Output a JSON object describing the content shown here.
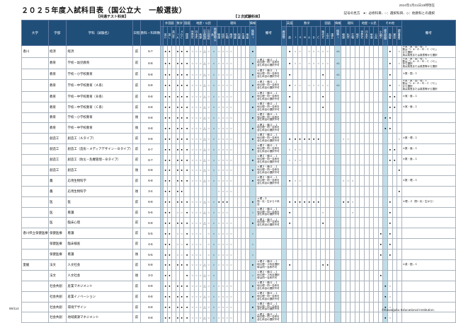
{
  "page": {
    "title": "２０２５年度入試科目表（国公立大　一般選抜）",
    "as_of": "2024年1月31日19時現在",
    "legend": "記号の見方　●：必修科目、○：選択科目、◇：他教科との選択",
    "section_ct": "【共通テスト科目】",
    "section_nj": "【２次試験科目】",
    "page_no": "86/114",
    "copyright": "©Kawaijuku Educational Institution."
  },
  "colors": {
    "header_bg": "#1F4E79",
    "stripe": "#BFDDE9",
    "grid": "#AAB4BD"
  },
  "table": {
    "left_cols": [
      "大学",
      "学部",
      "学科（試験名）",
      "日程",
      "教科・科目数"
    ],
    "ct": {
      "groups": [
        {
          "label": "",
          "span": 1
        },
        {
          "label": "外国語",
          "span": 3
        },
        {
          "label": "数学",
          "span": 2
        },
        {
          "label": "国語",
          "span": 1
        },
        {
          "label": "地歴・公民",
          "span": 6
        },
        {
          "label": "理科",
          "span": 8
        },
        {
          "label": "情報",
          "span": 1
        }
      ],
      "cols": [
        "",
        "英Ｒ",
        "英Ｌ",
        "英以外",
        "ⅠＡ",
        "ⅡＢＣ",
        "国語",
        "世界史",
        "日本史",
        "地理",
        "公共倫理",
        "公共政経",
        "地総歴総公共",
        "物理",
        "化学",
        "生物",
        "地学",
        "物基",
        "化基",
        "生基",
        "地基",
        "情報Ⅰ"
      ],
      "hl": [
        0,
        12,
        21
      ],
      "note_label": "備考"
    },
    "nj": {
      "groups": [
        {
          "label": "",
          "span": 1
        },
        {
          "label": "英語",
          "span": 1
        },
        {
          "label": "数学",
          "span": 6
        },
        {
          "label": "国語",
          "span": 3
        },
        {
          "label": "情報",
          "span": 1
        },
        {
          "label": "理科",
          "span": 4
        },
        {
          "label": "地歴・公民",
          "span": 4
        },
        {
          "label": "その他",
          "span": 5
        }
      ],
      "cols": [
        "教科数",
        "英",
        "Ⅰ",
        "Ⅱ",
        "Ⅲ",
        "Ａ",
        "Ｂ",
        "Ｃ",
        "現代文",
        "古文",
        "漢文",
        "情報Ⅰ",
        "物理",
        "化学",
        "生物",
        "地学",
        "世界史",
        "日本史",
        "地理",
        "公民",
        "小論文",
        "総合問題",
        "面接",
        "実技",
        "調査書等"
      ],
      "hl": [
        0,
        11,
        21
      ],
      "note_label": "備考"
    }
  },
  "ct_patterns": {
    "HUM": [
      "",
      "●",
      "●",
      "",
      "●",
      "●",
      "●",
      "○",
      "○",
      "○",
      "△",
      "○",
      "○",
      "○",
      "○",
      "○",
      "○",
      "",
      "",
      "",
      "",
      "●"
    ],
    "MED": [
      "",
      "●",
      "●",
      "",
      "●",
      "●",
      "●",
      "○",
      "○",
      "○",
      "△",
      "○",
      "○",
      "●",
      "●",
      "●",
      "",
      "",
      "",
      "",
      "",
      "●"
    ],
    "NUR": [
      "",
      "●",
      "●",
      "",
      "○",
      "○",
      "●",
      "○",
      "○",
      "○",
      "△",
      "○",
      "○",
      "○",
      "○",
      "○",
      "",
      "",
      "",
      "",
      "",
      "○"
    ],
    "HSU": [
      "",
      "●",
      "●",
      "",
      "○",
      "○",
      "●",
      "○",
      "○",
      "○",
      "",
      "○",
      "○",
      "○",
      "○",
      "○",
      "○",
      "",
      "",
      "",
      "",
      "○"
    ],
    "LBL": [
      "",
      "●",
      "●",
      "",
      "",
      "",
      "●",
      "○",
      "○",
      "○",
      "△",
      "○",
      "○",
      "",
      "",
      "",
      "",
      "",
      "",
      "",
      "",
      "○"
    ],
    "SCI34": [
      "",
      "●",
      "●",
      "",
      "●",
      "●",
      "",
      "",
      "",
      "",
      "",
      "",
      "",
      "○",
      "○",
      "○",
      "○",
      "",
      "",
      "",
      "",
      ""
    ]
  },
  "nj_patterns": {
    "ECO": [
      "",
      "●",
      "○",
      "○",
      "",
      "○",
      "○",
      "○",
      "○",
      "○",
      "",
      "＊1",
      "",
      "",
      "",
      "",
      "",
      "",
      "",
      "",
      "",
      "",
      "●",
      "",
      "○"
    ],
    "EDU3": [
      "",
      "●",
      "",
      "",
      "",
      "",
      "",
      "",
      "●",
      "",
      "",
      "＊1",
      "",
      "",
      "",
      "",
      "",
      "",
      "",
      "",
      "",
      "",
      "●",
      "",
      ""
    ],
    "EDUP": [
      "",
      "●",
      "",
      "",
      "",
      "",
      "",
      "",
      "●",
      "",
      "",
      "",
      "",
      "",
      "",
      "",
      "",
      "",
      "",
      "",
      "",
      "",
      "●",
      "●",
      ""
    ],
    "EDUL": [
      "",
      "",
      "",
      "",
      "",
      "",
      "",
      "",
      "",
      "",
      "",
      "",
      "",
      "",
      "",
      "",
      "",
      "",
      "",
      "",
      "",
      "●",
      "●",
      "",
      ""
    ],
    "ENGA": [
      "",
      "●",
      "●",
      "●",
      "●",
      "●",
      "●",
      "●",
      "",
      "",
      "",
      "",
      "○",
      "○",
      "",
      "",
      "",
      "",
      "",
      "",
      "",
      "",
      "",
      "",
      "○"
    ],
    "ENGB": [
      "",
      "○",
      "○",
      "○",
      "",
      "",
      "",
      "",
      "",
      "",
      "",
      "",
      "",
      "",
      "",
      "",
      "",
      "",
      "",
      "",
      "",
      "",
      "●",
      "●",
      ""
    ],
    "CHO": [
      "",
      "",
      "",
      "",
      "",
      "",
      "",
      "",
      "",
      "",
      "",
      "",
      "",
      "",
      "",
      "",
      "",
      "",
      "",
      "",
      "",
      "",
      "",
      "",
      "●"
    ],
    "AGR": [
      "",
      "●",
      "○",
      "○",
      "",
      "",
      "",
      "",
      "",
      "",
      "",
      "",
      "○",
      "○",
      "○",
      "",
      "",
      "",
      "",
      "",
      "",
      "",
      "",
      "",
      ""
    ],
    "MED": [
      "",
      "●",
      "●",
      "●",
      "●",
      "●",
      "●",
      "●",
      "",
      "",
      "",
      "",
      "●",
      "●",
      "○",
      "",
      "",
      "",
      "",
      "",
      "",
      "",
      "●",
      "",
      ""
    ],
    "NUR": [
      "",
      "●",
      "",
      "",
      "",
      "",
      "",
      "",
      "○",
      "",
      "",
      "",
      "",
      "",
      "○",
      "",
      "",
      "",
      "",
      "",
      "",
      "",
      "●",
      "",
      ""
    ],
    "PSY": [
      "",
      "●",
      "",
      "",
      "",
      "",
      "",
      "",
      "●",
      "",
      "",
      "",
      "",
      "",
      "",
      "",
      "",
      "",
      "",
      "",
      "",
      "",
      "●",
      "",
      ""
    ],
    "HSN": [
      "",
      "",
      "",
      "",
      "",
      "",
      "",
      "",
      "",
      "",
      "",
      "",
      "",
      "",
      "",
      "",
      "",
      "",
      "",
      "",
      "●",
      "",
      "●",
      "",
      ""
    ],
    "HUMF": [
      "",
      "●",
      "",
      "",
      "",
      "",
      "",
      "",
      "●",
      "●",
      "",
      "",
      "",
      "",
      "",
      "",
      "",
      "",
      "",
      "",
      "",
      "",
      "",
      "",
      ""
    ],
    "CHO2": [
      "",
      "",
      "",
      "",
      "",
      "",
      "",
      "",
      "",
      "",
      "",
      "",
      "",
      "",
      "",
      "",
      "",
      "",
      "",
      "",
      "●",
      "",
      "",
      "",
      ""
    ],
    "SOC": [
      "",
      "",
      "",
      "",
      "",
      "",
      "",
      "",
      "",
      "",
      "",
      "",
      "",
      "",
      "",
      "",
      "",
      "",
      "",
      "",
      "",
      "●",
      "○",
      "",
      ""
    ]
  },
  "ct_notes": {
    "STD": "＊理２・情Ⅰ２→１\n地公理－同一名称を含む科目の選択不可",
    "STD2": "＊理２・情Ⅰ２→１\n地公理－２科目選択時は同一名称不可",
    "MEDN": "＊理→２\n物・化・生から２科目"
  },
  "nj_notes": {
    "BIG": "＊英・数・国・理→１\n数は「Ⅰ・Ⅱ・Ａ・Ｂ・Ｃ（ベ）」\nから選択\n英は英長または英表等から選択",
    "S1": "＊数・国→１",
    "S2": "＊実・面→１",
    "S3": "＊数・理→１",
    "S4": "＊数・面→１",
    "S5": "＊理→２（物・化・生から）",
    "S7": "＊英・国→１"
  },
  "rows": [
    {
      "u": "香川",
      "f": "経済",
      "d": "経済",
      "s": "前",
      "n": "6-7",
      "ct": "HUM",
      "cn": "",
      "nj": "ECO",
      "jn": "BIG",
      "sep": "univ"
    },
    {
      "u": "",
      "f": "教育",
      "d": "学校－幼児教育",
      "s": "前",
      "n": "6-8",
      "ct": "HUM",
      "cn": "STD",
      "nj": "ECO",
      "jn": "BIG",
      "sep": "fac"
    },
    {
      "u": "",
      "f": "教育",
      "d": "学校－小学校教育",
      "s": "前",
      "n": "6-8",
      "ct": "HUM",
      "cn": "STD",
      "nj": "EDU3",
      "jn": "S1",
      "sep": ""
    },
    {
      "u": "",
      "f": "教育",
      "d": "学校－中学校教育（Ａ系）",
      "s": "前",
      "n": "6-8",
      "ct": "HUM",
      "cn": "STD",
      "nj": "ECO",
      "jn": "BIG",
      "sep": ""
    },
    {
      "u": "",
      "f": "教育",
      "d": "学校－中学校教育（Ｂ系）",
      "s": "前",
      "n": "6-8",
      "ct": "HUM",
      "cn": "STD",
      "nj": "EDUP",
      "jn": "S2",
      "sep": ""
    },
    {
      "u": "",
      "f": "教育",
      "d": "学校－中学校教育（Ｃ系）",
      "s": "前",
      "n": "6-8",
      "ct": "HUM",
      "cn": "STD",
      "nj": "EDUP",
      "jn": "S2",
      "sep": ""
    },
    {
      "u": "",
      "f": "教育",
      "d": "学校－小学校教育",
      "s": "後",
      "n": "6-8",
      "ct": "HUM",
      "cn": "STD",
      "nj": "EDUL",
      "jn": "",
      "sep": ""
    },
    {
      "u": "",
      "f": "教育",
      "d": "学校－中学校教育",
      "s": "後",
      "n": "6-8",
      "ct": "HUM",
      "cn": "STD",
      "nj": "EDUL",
      "jn": "",
      "sep": ""
    },
    {
      "u": "",
      "f": "創造工",
      "d": "創造工（Ａタイプ）",
      "s": "前",
      "n": "6-8",
      "ct": "HUM",
      "cn": "STD",
      "nj": "ENGA",
      "jn": "S3",
      "sep": "fac"
    },
    {
      "u": "",
      "f": "創造工",
      "d": "創造工（造形・メディアデザイン－Ｂタイプ）",
      "s": "前",
      "n": "6-7",
      "ct": "HUM",
      "cn": "STD",
      "nj": "ENGB",
      "jn": "S4",
      "sep": ""
    },
    {
      "u": "",
      "f": "創造工",
      "d": "創造工（防災・危機管理－Ｂタイプ）",
      "s": "前",
      "n": "6-7",
      "ct": "HUM",
      "cn": "STD",
      "nj": "ENGB",
      "jn": "S4",
      "sep": ""
    },
    {
      "u": "",
      "f": "創造工",
      "d": "創造工",
      "s": "後",
      "n": "6-8",
      "ct": "HUM",
      "cn": "STD",
      "nj": "CHO",
      "jn": "",
      "sep": ""
    },
    {
      "u": "",
      "f": "農",
      "d": "応用生物科学",
      "s": "前",
      "n": "6-8",
      "ct": "HUM",
      "cn": "STD",
      "nj": "AGR",
      "jn": "S3",
      "sep": "fac"
    },
    {
      "u": "",
      "f": "農",
      "d": "応用生物科学",
      "s": "後",
      "n": "3-4",
      "ct": "SCI34",
      "cn": "",
      "nj": "CHO",
      "jn": "",
      "sep": ""
    },
    {
      "u": "",
      "f": "医",
      "d": "医",
      "s": "前",
      "n": "6-8",
      "ct": "MED",
      "cn": "MEDN",
      "nj": "MED",
      "jn": "S5",
      "sep": "fac"
    },
    {
      "u": "",
      "f": "医",
      "d": "看護",
      "s": "前",
      "n": "5-6",
      "ct": "NUR",
      "cn": "STD",
      "nj": "NUR",
      "jn": "",
      "sep": ""
    },
    {
      "u": "",
      "f": "医",
      "d": "臨床心理",
      "s": "前",
      "n": "6-8",
      "ct": "HUM",
      "cn": "STD",
      "nj": "PSY",
      "jn": "",
      "sep": ""
    },
    {
      "u": "香川県立保健医療",
      "f": "保健医療",
      "d": "看護",
      "s": "前",
      "n": "5-5",
      "ct": "HSU",
      "cn": "",
      "nj": "HSN",
      "jn": "",
      "sep": "univ"
    },
    {
      "u": "",
      "f": "保健医療",
      "d": "臨床検査",
      "s": "前",
      "n": "4-6",
      "ct": "HSU",
      "cn": "",
      "nj": "HSN",
      "jn": "",
      "sep": ""
    },
    {
      "u": "",
      "f": "保健医療",
      "d": "看護",
      "s": "後",
      "n": "5-5",
      "ct": "HSU",
      "cn": "",
      "nj": "HSN",
      "jn": "",
      "sep": ""
    },
    {
      "u": "愛媛",
      "f": "法文",
      "d": "人文社会",
      "s": "前",
      "n": "6-8",
      "ct": "HUM",
      "cn": "STD2",
      "nj": "HUMF",
      "jn": "S7",
      "sep": "univ"
    },
    {
      "u": "",
      "f": "法文",
      "d": "人文社会",
      "s": "後",
      "n": "3-3",
      "ct": "LBL",
      "cn": "STD2",
      "nj": "CHO2",
      "jn": "",
      "sep": ""
    },
    {
      "u": "",
      "f": "社会共創",
      "d": "産業マネジメント",
      "s": "前",
      "n": "6-8",
      "ct": "HUM",
      "cn": "STD",
      "nj": "SOC",
      "jn": "",
      "sep": "fac"
    },
    {
      "u": "",
      "f": "社会共創",
      "d": "産業イノベーション",
      "s": "前",
      "n": "6-8",
      "ct": "HUM",
      "cn": "STD",
      "nj": "SOC",
      "jn": "",
      "sep": ""
    },
    {
      "u": "",
      "f": "社会共創",
      "d": "環境デザイン",
      "s": "前",
      "n": "6-8",
      "ct": "HUM",
      "cn": "STD",
      "nj": "SOC",
      "jn": "",
      "sep": ""
    },
    {
      "u": "",
      "f": "社会共創",
      "d": "地域資源マネジメント",
      "s": "前",
      "n": "6-8",
      "ct": "HUM",
      "cn": "STD",
      "nj": "SOC",
      "jn": "",
      "sep": ""
    }
  ]
}
